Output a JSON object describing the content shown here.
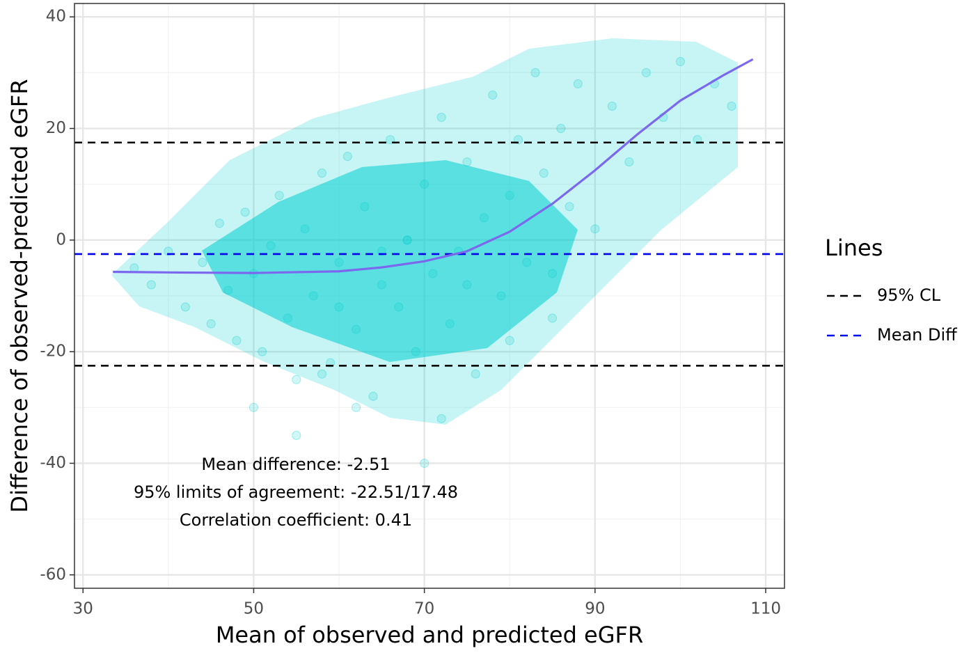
{
  "chart_data": {
    "type": "scatter",
    "xlabel": "Mean of observed and predicted eGFR",
    "ylabel": "Difference of observed-predicted eGFR",
    "xlim": [
      29.0,
      112.2
    ],
    "ylim": [
      -62.4,
      42.4
    ],
    "xticks": [
      30,
      50,
      70,
      90,
      110
    ],
    "yticks": [
      -60,
      -40,
      -20,
      0,
      20,
      40
    ],
    "xminor": [
      40,
      60,
      80,
      100
    ],
    "yminor": [
      -50,
      -30,
      -10,
      10,
      30
    ],
    "grid": true,
    "points": {
      "color": "#00cfcf",
      "x": [
        36,
        38,
        40,
        42,
        44,
        45,
        46,
        47,
        48,
        49,
        50,
        51,
        52,
        53,
        54,
        55,
        56,
        57,
        58,
        59,
        60,
        61,
        62,
        63,
        64,
        65,
        66,
        67,
        68,
        69,
        70,
        71,
        72,
        73,
        74,
        75,
        76,
        77,
        78,
        79,
        80,
        81,
        82,
        83,
        84,
        85,
        86,
        87,
        88,
        90,
        92,
        94,
        96,
        98,
        100,
        102,
        104,
        106,
        50,
        55,
        60,
        65,
        70,
        75,
        80,
        85,
        58,
        62,
        68,
        72
      ],
      "y": [
        -5,
        -8,
        -2,
        -12,
        -4,
        -15,
        3,
        -9,
        -18,
        5,
        -6,
        -20,
        -1,
        8,
        -14,
        -25,
        2,
        -10,
        12,
        -22,
        -4,
        15,
        -16,
        6,
        -28,
        -8,
        18,
        -12,
        0,
        -20,
        10,
        -6,
        22,
        -15,
        -2,
        14,
        -24,
        4,
        26,
        -10,
        8,
        18,
        -4,
        30,
        12,
        -14,
        20,
        6,
        28,
        2,
        24,
        14,
        30,
        22,
        32,
        18,
        28,
        24,
        -30,
        -35,
        -12,
        -2,
        -40,
        -8,
        -18,
        -6,
        -24,
        -30,
        0,
        -32
      ]
    },
    "smooth": {
      "color": "#7b68ee",
      "x": [
        33.5,
        40,
        50,
        60,
        65,
        70,
        75,
        80,
        85,
        90,
        95,
        100,
        105,
        108.5
      ],
      "y": [
        -5.7,
        -5.8,
        -5.9,
        -5.6,
        -4.9,
        -3.8,
        -2.0,
        1.5,
        6.5,
        12.5,
        19,
        25,
        29.5,
        32.4
      ]
    },
    "hlines": [
      {
        "name": "95% CL",
        "color": "#000000",
        "values": [
          17.48,
          -22.51
        ]
      },
      {
        "name": "Mean Diff",
        "color": "#0000ee",
        "values": [
          -2.51
        ]
      }
    ],
    "legend_title": "Lines",
    "annotations": [
      "Mean difference: -2.51",
      "95% limits of agreement: -22.51/17.48",
      "Correlation coefficient: 0.41"
    ]
  }
}
